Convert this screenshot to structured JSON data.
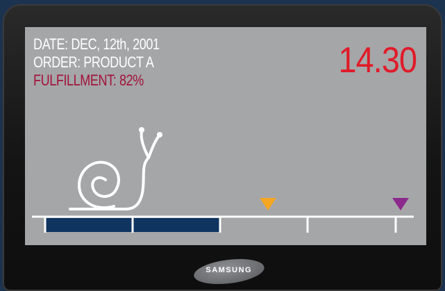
{
  "order_info": {
    "date": "DATE: DEC, 12th, 2001",
    "order": "ORDER: PRODUCT A",
    "fulfillment": "FULFILLMENT: 82%"
  },
  "counter": {
    "value": "14.30"
  },
  "progress": {
    "filled_segments": 2,
    "total_segments": 4
  },
  "markers": [
    {
      "name": "orange-marker",
      "color": "#f5a623"
    },
    {
      "name": "purple-marker",
      "color": "#8b2a8c"
    }
  ],
  "device": {
    "brand": "SAMSUNG"
  },
  "colors": {
    "screen": "#a5a6a8",
    "progress_fill": "#0f3460",
    "counter_text": "#e01b28",
    "fulfillment_text": "#a3123a"
  }
}
